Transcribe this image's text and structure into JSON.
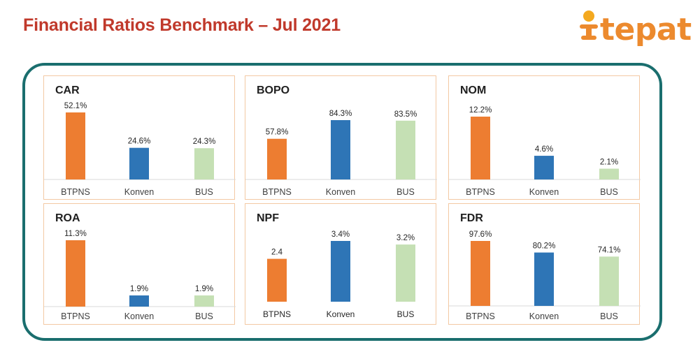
{
  "header": {
    "title": "Financial Ratios Benchmark – Jul 2021",
    "logo_text": "tepat"
  },
  "colors": {
    "title": "#c0392b",
    "frame": "#1a6e6e",
    "panel_border": "#f3c9a3",
    "btpns": "#ed7d31",
    "konven": "#2e75b6",
    "bus": "#c5e0b4"
  },
  "chart_data": [
    {
      "type": "bar",
      "title": "CAR",
      "categories": [
        "BTPNS",
        "Konven",
        "BUS"
      ],
      "values": [
        52.1,
        24.6,
        24.3
      ],
      "labels": [
        "52.1%",
        "24.6%",
        "24.3%"
      ]
    },
    {
      "type": "bar",
      "title": "BOPO",
      "categories": [
        "BTPNS",
        "Konven",
        "BUS"
      ],
      "values": [
        57.8,
        84.3,
        83.5
      ],
      "labels": [
        "57.8%",
        "84.3%",
        "83.5%"
      ]
    },
    {
      "type": "bar",
      "title": "NOM",
      "categories": [
        "BTPNS",
        "Konven",
        "BUS"
      ],
      "values": [
        12.2,
        4.6,
        2.1
      ],
      "labels": [
        "12.2%",
        "4.6%",
        "2.1%"
      ]
    },
    {
      "type": "bar",
      "title": "ROA",
      "categories": [
        "BTPNS",
        "Konven",
        "BUS"
      ],
      "values": [
        11.3,
        1.9,
        1.9
      ],
      "labels": [
        "11.3%",
        "1.9%",
        "1.9%"
      ]
    },
    {
      "type": "bar",
      "title": "NPF",
      "categories": [
        "BTPNS",
        "Konven",
        "BUS"
      ],
      "values": [
        2.4,
        3.4,
        3.2
      ],
      "labels": [
        "2.4",
        "3.4%",
        "3.2%"
      ]
    },
    {
      "type": "bar",
      "title": "FDR",
      "categories": [
        "BTPNS",
        "Konven",
        "BUS"
      ],
      "values": [
        97.6,
        80.2,
        74.1
      ],
      "labels": [
        "97.6%",
        "80.2%",
        "74.1%"
      ]
    }
  ]
}
